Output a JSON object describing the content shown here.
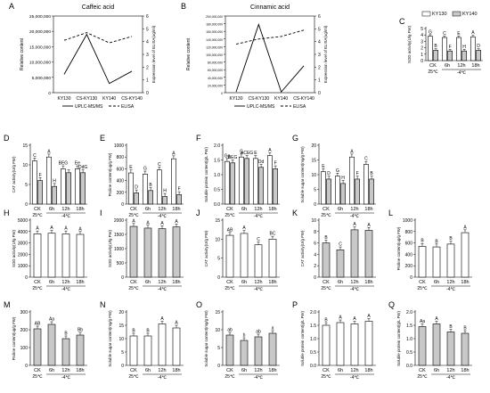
{
  "chart_data": [
    {
      "letter": "A",
      "type": "line",
      "title": "Caffeic acid",
      "categories": [
        "KY130",
        "CS-KY130",
        "KY140",
        "CS-KY140"
      ],
      "ylabel": "Relative content",
      "ylabel2": "Expression level of ELISA(ug/ml)",
      "ylim": [
        0,
        25000000
      ],
      "ylim2": [
        0,
        6
      ],
      "yticks": [
        "0",
        "5,000,000",
        "10,000,000",
        "15,000,000",
        "20,000,000",
        "25,000,000"
      ],
      "yticks2": [
        "0",
        "1",
        "2",
        "3",
        "4",
        "5",
        "6"
      ],
      "series": [
        {
          "name": "UPLC-MS/MS",
          "values": [
            6000000,
            19000000,
            3000000,
            7000000
          ],
          "style": "solid",
          "axis": "left"
        },
        {
          "name": "ELISA",
          "values": [
            4.1,
            4.7,
            3.9,
            4.4
          ],
          "style": "dashed",
          "axis": "right"
        }
      ]
    },
    {
      "letter": "B",
      "type": "line",
      "title": "Cinnamic acid",
      "categories": [
        "KY130",
        "CS-KY130",
        "KY140",
        "CS-KY140"
      ],
      "ylabel": "Relative content",
      "ylabel2": "Expression level of ELISA(ug/ml)",
      "ylim": [
        0,
        200000000
      ],
      "ylim2": [
        0,
        6
      ],
      "yticks": [
        "0",
        "20,000,000",
        "40,000,000",
        "60,000,000",
        "80,000,000",
        "100,000,000",
        "120,000,000",
        "140,000,000",
        "160,000,000",
        "180,000,000",
        "200,000,000"
      ],
      "yticks2": [
        "0",
        "1",
        "2",
        "3",
        "4",
        "5",
        "6"
      ],
      "series": [
        {
          "name": "UPLC-MS/MS",
          "values": [
            2000000,
            178000000,
            2000000,
            70000000
          ],
          "style": "solid",
          "axis": "left"
        },
        {
          "name": "ELISA",
          "values": [
            3.8,
            4.2,
            4.4,
            4.9
          ],
          "style": "dashed",
          "axis": "right"
        }
      ]
    },
    {
      "letter": "C",
      "type": "bar",
      "ylabel": "SOD activity(U/g FW)",
      "categories": [
        "CK",
        "6h",
        "12h",
        "18h"
      ],
      "ylim": [
        0,
        5
      ],
      "yticks": [
        "0",
        "1",
        "2",
        "3",
        "4",
        "5"
      ],
      "legend": [
        "KY130",
        "KY140"
      ],
      "series": [
        {
          "name": "KY130",
          "values": [
            3.8,
            3.6,
            3.6,
            3.7
          ],
          "letters": [
            "G",
            "C",
            "E",
            "A"
          ]
        },
        {
          "name": "KY140",
          "values": [
            1.6,
            1.5,
            1.5,
            1.6
          ],
          "letters": [
            "B",
            "F",
            "H",
            "D"
          ]
        }
      ]
    },
    {
      "letter": "D",
      "type": "bar",
      "ylabel": "CAT activity(U/g FW)",
      "categories": [
        "CK",
        "6h",
        "12h",
        "18h"
      ],
      "ylim": [
        0,
        15
      ],
      "yticks": [
        "0",
        "5",
        "10",
        "15"
      ],
      "series": [
        {
          "name": "KY130",
          "values": [
            11,
            12,
            9,
            9
          ],
          "letters": [
            "C",
            "A",
            "BEG",
            "Ee"
          ]
        },
        {
          "name": "KY140",
          "values": [
            6,
            4.5,
            8,
            8
          ],
          "letters": [
            "F",
            "H",
            "",
            "DdG"
          ]
        }
      ]
    },
    {
      "letter": "E",
      "type": "bar",
      "ylabel": "Proline content(ug/g FW)",
      "categories": [
        "CK",
        "6h",
        "12h",
        "18h"
      ],
      "ylim": [
        0,
        1000
      ],
      "yticks": [
        "0",
        "200",
        "400",
        "600",
        "800",
        "1000"
      ],
      "series": [
        {
          "name": "KY130",
          "values": [
            530,
            510,
            580,
            770
          ],
          "letters": [
            "E",
            "G",
            "C",
            "A"
          ]
        },
        {
          "name": "KY140",
          "values": [
            190,
            230,
            130,
            160
          ],
          "letters": [
            "D",
            "B",
            "H",
            "F"
          ]
        }
      ]
    },
    {
      "letter": "F",
      "type": "bar",
      "ylabel": "Soluble protein content(g/L FW)",
      "categories": [
        "CK",
        "6h",
        "12h",
        "18h"
      ],
      "ylim": [
        0,
        2.0
      ],
      "yticks": [
        "0.0",
        "0.5",
        "1.0",
        "1.5",
        "2.0"
      ],
      "series": [
        {
          "name": "KY130",
          "values": [
            1.45,
            1.6,
            1.55,
            1.65
          ],
          "letters": [
            "Gg",
            "C",
            "E",
            "A"
          ]
        },
        {
          "name": "KY140",
          "values": [
            1.4,
            1.55,
            1.25,
            1.2
          ],
          "letters": [
            "BEG",
            "ACEG",
            "Dd",
            "F"
          ]
        }
      ]
    },
    {
      "letter": "G",
      "type": "bar",
      "ylabel": "Soluble sugar content(mg/g FW)",
      "categories": [
        "CK",
        "6h",
        "12h",
        "18h"
      ],
      "ylim": [
        0,
        20
      ],
      "yticks": [
        "0",
        "5",
        "10",
        "15",
        "20"
      ],
      "series": [
        {
          "name": "KY130",
          "values": [
            11,
            9.5,
            16,
            13.5
          ],
          "letters": [
            "E",
            "G",
            "A",
            "C"
          ]
        },
        {
          "name": "KY140",
          "values": [
            8.5,
            7.0,
            8.5,
            8.5
          ],
          "letters": [
            "D",
            "H",
            "F",
            "B"
          ]
        }
      ]
    },
    {
      "letter": "H",
      "type": "bar",
      "ylabel": "SOD activity(U/g FW)",
      "categories": [
        "CK",
        "6h",
        "12h",
        "18h"
      ],
      "ylim": [
        0,
        5000
      ],
      "yticks": [
        "0",
        "1000",
        "2000",
        "3000",
        "4000",
        "5000"
      ],
      "series": [
        {
          "name": "",
          "values": [
            3800,
            3850,
            3800,
            3750
          ],
          "letters": [
            "A",
            "A",
            "A",
            "A"
          ],
          "fill": "white"
        }
      ]
    },
    {
      "letter": "I",
      "type": "bar",
      "ylabel": "SOD activity(U/g FW)",
      "categories": [
        "CK",
        "6h",
        "12h",
        "18h"
      ],
      "ylim": [
        0,
        2000
      ],
      "yticks": [
        "0",
        "500",
        "1000",
        "1500",
        "2000"
      ],
      "series": [
        {
          "name": "",
          "values": [
            1780,
            1720,
            1700,
            1760
          ],
          "letters": [
            "A",
            "A",
            "A",
            "A"
          ],
          "fill": "gray"
        }
      ]
    },
    {
      "letter": "J",
      "type": "bar",
      "ylabel": "CAT activity(U/g FW)",
      "categories": [
        "CK",
        "6h",
        "12h",
        "18h"
      ],
      "ylim": [
        0,
        15
      ],
      "yticks": [
        "0",
        "5",
        "10",
        "15"
      ],
      "series": [
        {
          "name": "",
          "values": [
            11,
            11.5,
            8.5,
            10
          ],
          "letters": [
            "AB",
            "A",
            "C",
            "BC"
          ],
          "fill": "white"
        }
      ]
    },
    {
      "letter": "K",
      "type": "bar",
      "ylabel": "CAT activity(U/g FW)",
      "categories": [
        "CK",
        "6h",
        "12h",
        "18h"
      ],
      "ylim": [
        0,
        10
      ],
      "yticks": [
        "0",
        "2",
        "4",
        "6",
        "8",
        "10"
      ],
      "series": [
        {
          "name": "",
          "values": [
            6,
            4.8,
            8.3,
            8.2
          ],
          "letters": [
            "B",
            "C",
            "A",
            "A"
          ],
          "fill": "gray"
        }
      ]
    },
    {
      "letter": "L",
      "type": "bar",
      "ylabel": "Proline content(ug/g FW)",
      "categories": [
        "CK",
        "6h",
        "12h",
        "18h"
      ],
      "ylim": [
        0,
        1000
      ],
      "yticks": [
        "0",
        "200",
        "400",
        "600",
        "800",
        "1000"
      ],
      "series": [
        {
          "name": "",
          "values": [
            540,
            530,
            580,
            780
          ],
          "letters": [
            "B",
            "B",
            "B",
            "A"
          ],
          "fill": "white"
        }
      ]
    },
    {
      "letter": "M",
      "type": "bar",
      "ylabel": "Proline content(ug/g FW)",
      "categories": [
        "CK",
        "6h",
        "12h",
        "18h"
      ],
      "ylim": [
        0,
        300
      ],
      "yticks": [
        "0",
        "100",
        "200",
        "300"
      ],
      "series": [
        {
          "name": "",
          "values": [
            205,
            230,
            150,
            170
          ],
          "letters": [
            "AB",
            "Aa",
            "B",
            "Bb"
          ],
          "fill": "gray"
        }
      ]
    },
    {
      "letter": "N",
      "type": "bar",
      "ylabel": "Soluble sugar content(mg/g FW)",
      "categories": [
        "CK",
        "6h",
        "12h",
        "18h"
      ],
      "ylim": [
        0,
        20
      ],
      "yticks": [
        "0",
        "5",
        "10",
        "15",
        "20"
      ],
      "series": [
        {
          "name": "",
          "values": [
            11,
            11,
            15.5,
            14
          ],
          "letters": [
            "B",
            "B",
            "A",
            "A"
          ],
          "fill": "white"
        }
      ]
    },
    {
      "letter": "O",
      "type": "bar",
      "ylabel": "Soluble sugar content(mg/g FW)",
      "categories": [
        "CK",
        "6h",
        "12h",
        "18h"
      ],
      "ylim": [
        0,
        15
      ],
      "yticks": [
        "0",
        "5",
        "10",
        "15"
      ],
      "series": [
        {
          "name": "",
          "values": [
            8.5,
            7,
            8,
            9
          ],
          "letters": [
            "ab",
            "b",
            "ab",
            "a"
          ],
          "fill": "gray"
        }
      ]
    },
    {
      "letter": "P",
      "type": "bar",
      "ylabel": "Soluble protein content(g/L FW)",
      "categories": [
        "CK",
        "6h",
        "12h",
        "18h"
      ],
      "ylim": [
        0,
        2.0
      ],
      "yticks": [
        "0.0",
        "0.5",
        "1.0",
        "1.5",
        "2.0"
      ],
      "series": [
        {
          "name": "",
          "values": [
            1.5,
            1.6,
            1.55,
            1.65
          ],
          "letters": [
            "B",
            "A",
            "A",
            "A"
          ],
          "fill": "white"
        }
      ]
    },
    {
      "letter": "Q",
      "type": "bar",
      "ylabel": "Soluble protein content(g/L FW)",
      "categories": [
        "CK",
        "6h",
        "12h",
        "18h"
      ],
      "ylim": [
        0,
        2.0
      ],
      "yticks": [
        "0.0",
        "0.5",
        "1.0",
        "1.5",
        "2.0"
      ],
      "series": [
        {
          "name": "",
          "values": [
            1.45,
            1.55,
            1.25,
            1.2
          ],
          "letters": [
            "Aa",
            "A",
            "B",
            "B"
          ],
          "fill": "gray"
        }
      ]
    }
  ],
  "labels": {
    "ck_temp": "25℃",
    "cold_temp": "-4℃"
  }
}
